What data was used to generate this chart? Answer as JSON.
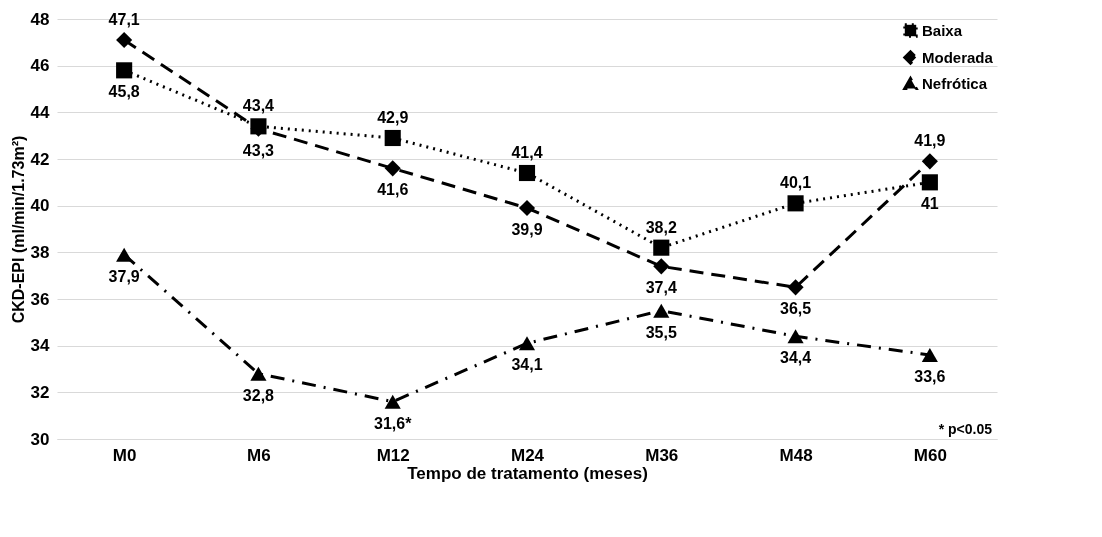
{
  "chart_data": {
    "type": "line",
    "xlabel": "Tempo de tratamento (meses)",
    "ylabel": "CKD-EPI (ml/min/1.73m²)",
    "categories": [
      "M0",
      "M6",
      "M12",
      "M24",
      "M36",
      "M48",
      "M60"
    ],
    "series": [
      {
        "name": "Baixa",
        "color": "#000000",
        "marker": "square",
        "line_style": "dotted",
        "values": [
          45.8,
          43.4,
          42.9,
          41.4,
          38.2,
          40.1,
          41
        ],
        "value_labels": [
          "45,8",
          "43,4",
          "42,9",
          "41,4",
          "38,2",
          "40,1",
          "41"
        ]
      },
      {
        "name": "Moderada",
        "color": "#000000",
        "marker": "diamond",
        "line_style": "dashed",
        "values": [
          47.1,
          43.3,
          41.6,
          39.9,
          37.4,
          36.5,
          41.9
        ],
        "value_labels": [
          "47,1",
          "43,3",
          "41,6",
          "39,9",
          "37,4",
          "36,5",
          "41,9"
        ]
      },
      {
        "name": "Nefrótica",
        "color": "#000000",
        "marker": "triangle",
        "line_style": "dashdot",
        "values": [
          37.9,
          32.8,
          31.6,
          34.1,
          35.5,
          34.4,
          33.6
        ],
        "value_labels": [
          "37,9",
          "32,8",
          "31,6*",
          "34,1",
          "35,5",
          "34,4",
          "33,6"
        ]
      }
    ],
    "ylim": [
      30,
      48
    ],
    "yticks": [
      30,
      32,
      34,
      36,
      38,
      40,
      42,
      44,
      46,
      48
    ],
    "grid": "y",
    "legend": "top right",
    "annotations": [
      "* p<0.05"
    ]
  }
}
